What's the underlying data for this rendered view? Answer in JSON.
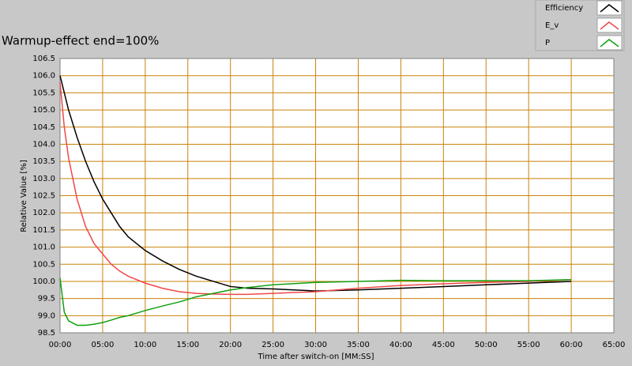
{
  "chart_data": {
    "type": "line",
    "title": "Warmup-effect end=100%",
    "x_label": "Time after switch-on [MM:SS]",
    "y_label": "Relative Value [%]",
    "x": [
      0,
      0.5,
      1,
      2,
      3,
      4,
      5,
      6,
      7,
      8,
      10,
      12,
      14,
      16,
      18,
      20,
      22,
      25,
      30,
      35,
      40,
      45,
      50,
      55,
      60
    ],
    "series": [
      {
        "name": "Efficiency",
        "color": "#000000",
        "values": [
          106.0,
          105.5,
          105.0,
          104.2,
          103.5,
          102.9,
          102.4,
          102.0,
          101.6,
          101.3,
          100.9,
          100.6,
          100.35,
          100.15,
          100.0,
          99.85,
          99.8,
          99.78,
          99.72,
          99.75,
          99.8,
          99.85,
          99.9,
          99.95,
          100.0
        ]
      },
      {
        "name": "E_v",
        "color": "#f04848",
        "values": [
          105.8,
          104.5,
          103.6,
          102.4,
          101.6,
          101.1,
          100.8,
          100.5,
          100.3,
          100.15,
          99.95,
          99.8,
          99.7,
          99.65,
          99.63,
          99.62,
          99.62,
          99.65,
          99.7,
          99.8,
          99.88,
          99.93,
          99.97,
          100.0,
          100.05
        ]
      },
      {
        "name": "P",
        "color": "#10a010",
        "values": [
          100.1,
          99.1,
          98.85,
          98.72,
          98.72,
          98.75,
          98.8,
          98.87,
          98.95,
          99.0,
          99.15,
          99.28,
          99.4,
          99.55,
          99.65,
          99.75,
          99.82,
          99.9,
          99.97,
          100.0,
          100.03,
          100.02,
          100.02,
          100.02,
          100.05
        ]
      }
    ],
    "xlim": [
      0,
      65
    ],
    "xticks": [
      {
        "value": 0,
        "label": "00:00"
      },
      {
        "value": 5,
        "label": "05:00"
      },
      {
        "value": 10,
        "label": "10:00"
      },
      {
        "value": 15,
        "label": "15:00"
      },
      {
        "value": 20,
        "label": "20:00"
      },
      {
        "value": 25,
        "label": "25:00"
      },
      {
        "value": 30,
        "label": "30:00"
      },
      {
        "value": 35,
        "label": "35:00"
      },
      {
        "value": 40,
        "label": "40:00"
      },
      {
        "value": 45,
        "label": "45:00"
      },
      {
        "value": 50,
        "label": "50:00"
      },
      {
        "value": 55,
        "label": "55:00"
      },
      {
        "value": 60,
        "label": "60:00"
      },
      {
        "value": 65,
        "label": "65:00"
      }
    ],
    "ylim": [
      98.5,
      106.5
    ],
    "yticks": [
      98.5,
      {
        "value": 99,
        "label": "99.0"
      },
      99.5,
      {
        "value": 100,
        "label": "100.0"
      },
      100.5,
      {
        "value": 101,
        "label": "101.0"
      },
      101.5,
      {
        "value": 102,
        "label": "102.0"
      },
      102.5,
      {
        "value": 103,
        "label": "103.0"
      },
      103.5,
      {
        "value": 104,
        "label": "104.0"
      },
      104.5,
      {
        "value": 105,
        "label": "105.0"
      },
      105.5,
      {
        "value": 106,
        "label": "106.0"
      },
      106.5
    ],
    "grid": true,
    "grid_color": "#c8820a"
  }
}
